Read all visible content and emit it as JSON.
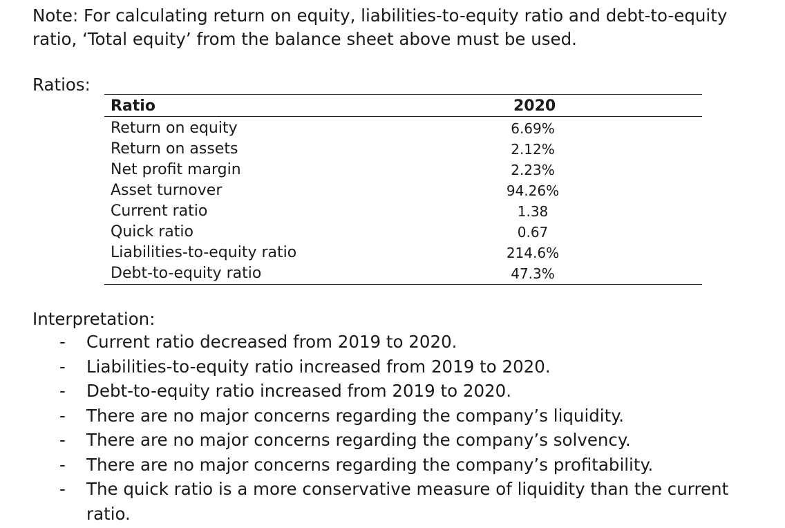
{
  "note": "Note: For calculating return on equity, liabilities-to-equity ratio and debt-to-equity ratio, ‘Total equity’ from the balance sheet above must be used.",
  "ratios_label": "Ratios:",
  "table": {
    "header": {
      "ratio": "Ratio",
      "year": "2020"
    },
    "rows": [
      {
        "name": "Return on equity",
        "value": "6.69%"
      },
      {
        "name": "Return on assets",
        "value": "2.12%"
      },
      {
        "name": "Net profit margin",
        "value": "2.23%"
      },
      {
        "name": "Asset turnover",
        "value": "94.26%"
      },
      {
        "name": "Current ratio",
        "value": "1.38"
      },
      {
        "name": "Quick ratio",
        "value": "0.67"
      },
      {
        "name": "Liabilities-to-equity ratio",
        "value": "214.6%"
      },
      {
        "name": "Debt-to-equity ratio",
        "value": "47.3%"
      }
    ]
  },
  "interpretation": {
    "title": "Interpretation:",
    "dash": "-",
    "items": [
      "Current ratio decreased from 2019 to 2020.",
      "Liabilities-to-equity ratio increased from 2019 to 2020.",
      "Debt-to-equity ratio increased from 2019 to 2020.",
      "There are no major concerns regarding the company’s liquidity.",
      "There are no major concerns regarding the company’s solvency.",
      "There are no major concerns regarding the company’s profitability.",
      "The quick ratio is a more conservative measure of liquidity than the current ratio."
    ]
  }
}
